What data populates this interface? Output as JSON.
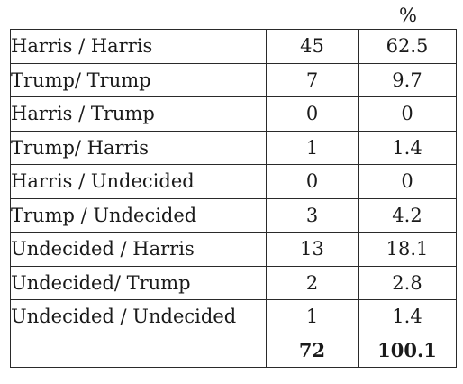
{
  "header": {
    "percent_label": "%"
  },
  "rows": [
    {
      "label": "Harris / Harris",
      "count": "45",
      "percent": "62.5"
    },
    {
      "label": "Trump/ Trump",
      "count": "7",
      "percent": "9.7"
    },
    {
      "label": "Harris / Trump",
      "count": "0",
      "percent": "0"
    },
    {
      "label": "Trump/ Harris",
      "count": "1",
      "percent": "1.4"
    },
    {
      "label": "Harris / Undecided",
      "count": "0",
      "percent": "0"
    },
    {
      "label": "Trump / Undecided",
      "count": "3",
      "percent": "4.2"
    },
    {
      "label": "Undecided / Harris",
      "count": "13",
      "percent": "18.1"
    },
    {
      "label": "Undecided/ Trump",
      "count": "2",
      "percent": "2.8"
    },
    {
      "label": "Undecided / Undecided",
      "count": "1",
      "percent": "1.4"
    }
  ],
  "total": {
    "label": "",
    "count": "72",
    "percent": "100.1"
  }
}
